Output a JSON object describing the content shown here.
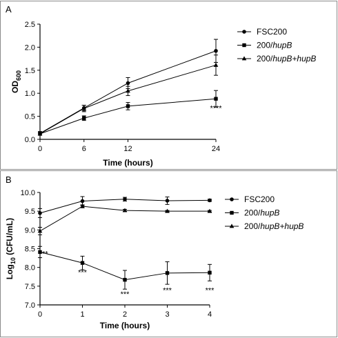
{
  "chart_data": [
    {
      "panel": "A",
      "type": "line",
      "xlabel": "Time (hours)",
      "ylabel_main": "OD",
      "ylabel_sub": "600",
      "x": [
        0,
        6,
        12,
        24
      ],
      "xticks": [
        "0",
        "6",
        "12",
        "24"
      ],
      "xlim": [
        0,
        24
      ],
      "ylim": [
        0.0,
        2.5
      ],
      "yticks": [
        "0.0",
        "0.5",
        "1.0",
        "1.5",
        "2.0",
        "2.5"
      ],
      "legend_position": "top-right",
      "series": [
        {
          "name": "FSC200",
          "name_italic": "",
          "marker": "circle",
          "values": [
            0.13,
            0.68,
            1.22,
            1.92
          ],
          "err": [
            0.04,
            0.06,
            0.12,
            0.25
          ]
        },
        {
          "name": "200/",
          "name_italic": "hupB",
          "marker": "square",
          "values": [
            0.12,
            0.46,
            0.72,
            0.88
          ],
          "err": [
            0.03,
            0.05,
            0.08,
            0.18
          ]
        },
        {
          "name": "200/",
          "name_italic": "hupB+hupB",
          "marker": "triangle",
          "values": [
            0.12,
            0.67,
            1.05,
            1.61
          ],
          "err": [
            0.03,
            0.07,
            0.1,
            0.22
          ]
        }
      ],
      "annotations": [
        {
          "text": "****",
          "x": 24,
          "y": 0.62
        }
      ]
    },
    {
      "panel": "B",
      "type": "line",
      "xlabel": "Time (hours)",
      "ylabel_main": "Log",
      "ylabel_sub": "10",
      "ylabel_tail": " (CFU/mL)",
      "x": [
        0,
        1,
        2,
        3,
        4
      ],
      "xticks": [
        "0",
        "1",
        "2",
        "3",
        "4"
      ],
      "xlim": [
        0,
        4
      ],
      "ylim": [
        7.0,
        10.0
      ],
      "yticks": [
        "7.0",
        "7.5",
        "8.0",
        "8.5",
        "9.0",
        "9.5",
        "10.0"
      ],
      "legend_position": "right",
      "series": [
        {
          "name": "FSC200",
          "name_italic": "",
          "marker": "circle",
          "values": [
            9.45,
            9.77,
            9.82,
            9.78,
            9.79
          ],
          "err": [
            0.12,
            0.12,
            0.05,
            0.1,
            0.03
          ]
        },
        {
          "name": "200/",
          "name_italic": "hupB",
          "marker": "square",
          "values": [
            8.41,
            8.12,
            7.67,
            7.85,
            7.86
          ],
          "err": [
            0.15,
            0.18,
            0.25,
            0.3,
            0.22
          ]
        },
        {
          "name": "200/",
          "name_italic": "hupB+hupB",
          "marker": "triangle",
          "values": [
            8.97,
            9.63,
            9.52,
            9.5,
            9.5
          ],
          "err": [
            0.1,
            0.04,
            0.03,
            0.02,
            0.02
          ]
        }
      ],
      "annotations": [
        {
          "text": "**",
          "x": 0.12,
          "y": 8.3
        },
        {
          "text": "***",
          "x": 1,
          "y": 7.8
        },
        {
          "text": "***",
          "x": 2,
          "y": 7.22
        },
        {
          "text": "***",
          "x": 3,
          "y": 7.32
        },
        {
          "text": "***",
          "x": 4,
          "y": 7.32
        }
      ]
    }
  ]
}
